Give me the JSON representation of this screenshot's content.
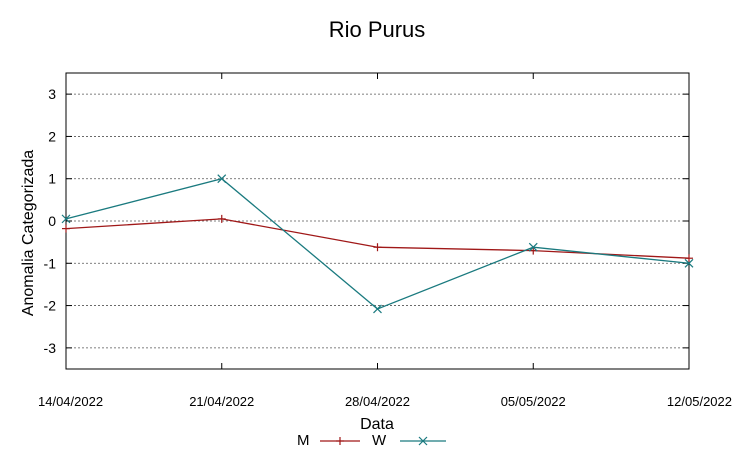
{
  "chart_data": {
    "type": "line",
    "title": "Rio Purus",
    "xlabel": "Data",
    "ylabel": "Anomalia Categorizada",
    "categories": [
      "14/04/2022",
      "21/04/2022",
      "28/04/2022",
      "05/05/2022",
      "12/05/2022"
    ],
    "yticks": [
      3,
      2,
      1,
      0,
      -1,
      -2,
      -3
    ],
    "ylim": [
      -3.5,
      3.5
    ],
    "grid": "horizontal dashed",
    "legend_position": "bottom",
    "series": [
      {
        "name": "M",
        "values": [
          -0.18,
          0.05,
          -0.62,
          -0.7,
          -0.88
        ],
        "color": "#a01818",
        "marker": "plus"
      },
      {
        "name": "W",
        "values": [
          0.05,
          1.0,
          -2.08,
          -0.62,
          -1.0
        ],
        "color": "#1a7a7f",
        "marker": "cross"
      }
    ]
  }
}
